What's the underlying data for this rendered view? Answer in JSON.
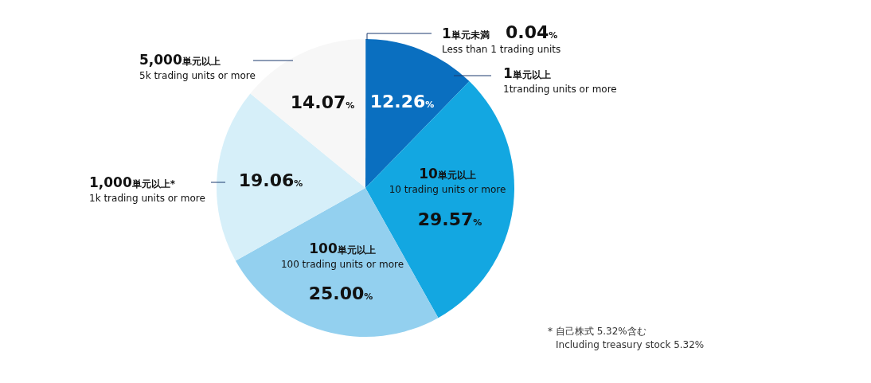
{
  "chart_data": {
    "type": "pie",
    "categories": [
      "1単元未満\nLess than 1 trading units",
      "1単元以上\n1tranding units or more",
      "10単元以上\n10 trading units or more",
      "100単元以上\n100 trading units or more",
      "1,000単元以上*\n1k trading units or more",
      "5,000単元以上\n5k trading units or more"
    ],
    "values": [
      0.04,
      12.26,
      29.57,
      25.0,
      19.06,
      14.07
    ],
    "value_labels": [
      "0.04%",
      "12.26%",
      "29.57%",
      "25.00%",
      "19.06%",
      "14.07%"
    ],
    "colors": [
      "#0a6fc0",
      "#0a6fc0",
      "#13a7e1",
      "#93d0ef",
      "#d6eff9",
      "#f7f7f7"
    ],
    "annotations": [
      "* 自己株式 5.32%含む\nIncluding treasury stock 5.32%"
    ]
  }
}
